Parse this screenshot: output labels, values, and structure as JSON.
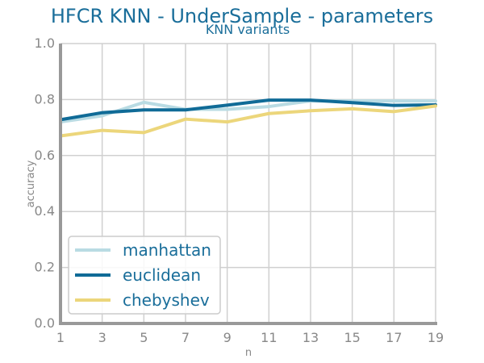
{
  "chart_data": {
    "type": "line",
    "title": "HFCR KNN - UnderSample - parameters",
    "subtitle": "KNN variants",
    "xlabel": "n",
    "ylabel": "accuracy",
    "x": [
      1,
      3,
      5,
      7,
      9,
      11,
      13,
      15,
      17,
      19
    ],
    "xticks": [
      1,
      3,
      5,
      7,
      9,
      11,
      13,
      15,
      17,
      19
    ],
    "yticks": [
      0.0,
      0.2,
      0.4,
      0.6,
      0.8,
      1.0
    ],
    "ytick_labels": [
      "0.0",
      "0.2",
      "0.4",
      "0.6",
      "0.8",
      "1.0"
    ],
    "xlim": [
      1,
      19
    ],
    "ylim": [
      0,
      1
    ],
    "grid": true,
    "legend_position": "bottom-left",
    "series": [
      {
        "name": "manhattan",
        "color": "#b9dbe3",
        "values": [
          0.72,
          0.742,
          0.79,
          0.765,
          0.765,
          0.775,
          0.795,
          0.795,
          0.795,
          0.795
        ]
      },
      {
        "name": "euclidean",
        "color": "#106b97",
        "values": [
          0.728,
          0.753,
          0.763,
          0.763,
          0.78,
          0.798,
          0.798,
          0.789,
          0.779,
          0.781
        ]
      },
      {
        "name": "chebyshev",
        "color": "#ecd67b",
        "values": [
          0.67,
          0.69,
          0.682,
          0.73,
          0.72,
          0.75,
          0.76,
          0.767,
          0.757,
          0.777
        ]
      }
    ]
  }
}
